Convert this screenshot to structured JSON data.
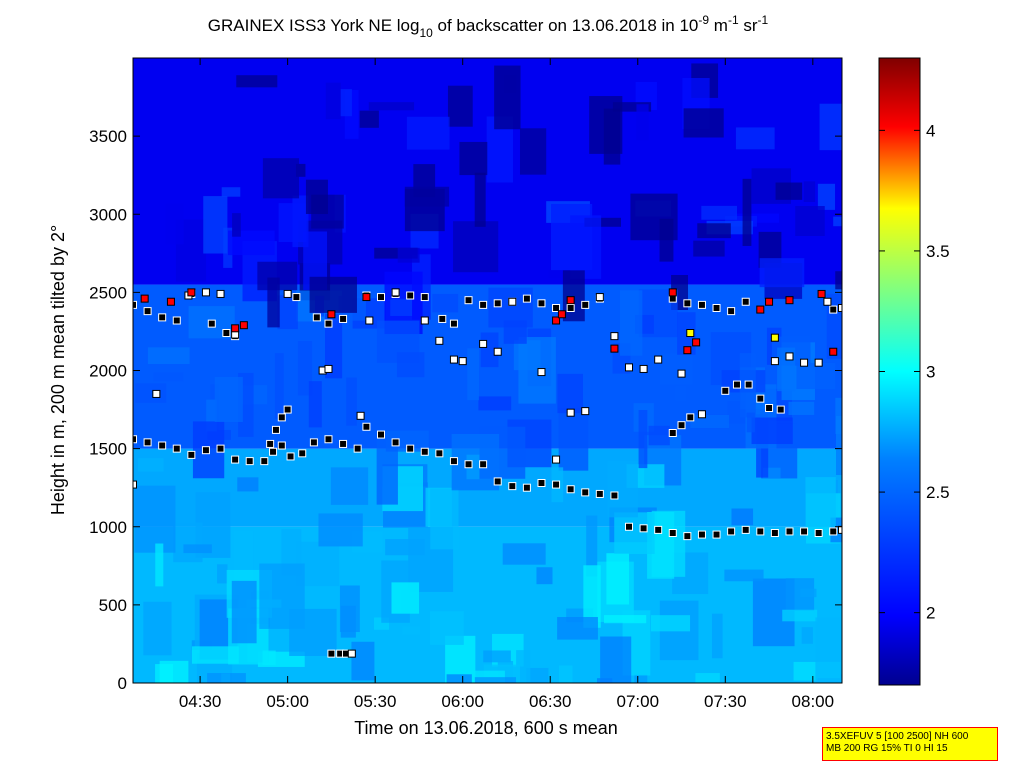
{
  "chart_data": {
    "type": "heatmap",
    "title": {
      "prefix": "GRAINEX ISS3 York NE log",
      "sub": "10",
      "middle": " of backscatter on 13.06.2018 in 10",
      "sup1": "-9",
      "unit1": " m",
      "sup2": "-1",
      "unit2": " sr",
      "sup3": "-1"
    },
    "xlabel": "Time on 13.06.2018, 600 s mean",
    "ylabel": "Height in m, 200 m mean tilted by 2°",
    "x_range": [
      "04:07",
      "08:10"
    ],
    "x_ticks": [
      "04:30",
      "05:00",
      "05:30",
      "06:00",
      "06:30",
      "07:00",
      "07:30",
      "08:00"
    ],
    "ylim": [
      0,
      4000
    ],
    "y_ticks": [
      0,
      500,
      1000,
      1500,
      2000,
      2500,
      3000,
      3500
    ],
    "colorbar": {
      "range": [
        1.7,
        4.3
      ],
      "ticks": [
        2,
        2.5,
        3,
        3.5,
        4
      ],
      "colormap": [
        "#00008f",
        "#0000ff",
        "#00ffff",
        "#ffff00",
        "#ff0000",
        "#800000"
      ]
    },
    "field": {
      "description_levels": "background colour regions by height band",
      "bands": [
        {
          "from": 0,
          "to": 1000,
          "value": 2.8
        },
        {
          "from": 1000,
          "to": 1500,
          "value": 2.75
        },
        {
          "from": 1500,
          "to": 2550,
          "value": 2.45
        },
        {
          "from": 2550,
          "to": 4000,
          "value": 1.95
        }
      ]
    },
    "series": [
      {
        "marker": "black-square",
        "points": [
          [
            "04:07",
            1560
          ],
          [
            "04:12",
            1540
          ],
          [
            "04:17",
            1520
          ],
          [
            "04:22",
            1500
          ],
          [
            "04:27",
            1460
          ],
          [
            "04:32",
            1490
          ],
          [
            "04:37",
            1500
          ],
          [
            "04:42",
            1430
          ],
          [
            "04:47",
            1420
          ],
          [
            "04:52",
            1420
          ],
          [
            "04:55",
            1480
          ],
          [
            "04:58",
            1520
          ],
          [
            "05:01",
            1450
          ],
          [
            "05:05",
            1470
          ],
          [
            "05:09",
            1540
          ],
          [
            "05:14",
            1560
          ],
          [
            "05:19",
            1530
          ],
          [
            "05:24",
            1500
          ],
          [
            "05:27",
            1640
          ],
          [
            "05:32",
            1590
          ],
          [
            "05:37",
            1540
          ],
          [
            "05:42",
            1500
          ],
          [
            "05:47",
            1480
          ],
          [
            "05:52",
            1470
          ],
          [
            "05:57",
            1420
          ],
          [
            "06:02",
            1400
          ],
          [
            "06:07",
            1400
          ],
          [
            "06:12",
            1290
          ],
          [
            "06:17",
            1260
          ],
          [
            "06:22",
            1250
          ],
          [
            "06:27",
            1280
          ],
          [
            "06:32",
            1270
          ],
          [
            "06:37",
            1240
          ],
          [
            "06:42",
            1220
          ],
          [
            "06:47",
            1210
          ],
          [
            "06:52",
            1200
          ],
          [
            "06:57",
            1000
          ],
          [
            "07:02",
            990
          ],
          [
            "07:07",
            980
          ],
          [
            "07:12",
            960
          ],
          [
            "07:17",
            940
          ],
          [
            "07:22",
            950
          ],
          [
            "07:27",
            950
          ],
          [
            "07:32",
            970
          ],
          [
            "07:37",
            980
          ],
          [
            "07:42",
            970
          ],
          [
            "07:47",
            960
          ],
          [
            "07:52",
            970
          ],
          [
            "07:57",
            970
          ],
          [
            "08:02",
            960
          ],
          [
            "08:07",
            970
          ],
          [
            "04:54",
            1530
          ],
          [
            "04:56",
            1620
          ],
          [
            "04:58",
            1700
          ],
          [
            "05:00",
            1750
          ],
          [
            "07:12",
            1600
          ],
          [
            "07:15",
            1650
          ],
          [
            "07:18",
            1700
          ],
          [
            "07:30",
            1870
          ],
          [
            "07:34",
            1910
          ],
          [
            "07:38",
            1910
          ],
          [
            "07:42",
            1820
          ],
          [
            "07:45",
            1760
          ],
          [
            "07:49",
            1750
          ],
          [
            "04:07",
            2420
          ],
          [
            "04:12",
            2380
          ],
          [
            "04:17",
            2340
          ],
          [
            "04:22",
            2320
          ],
          [
            "04:27",
            2490
          ],
          [
            "04:34",
            2300
          ],
          [
            "04:39",
            2240
          ],
          [
            "04:42",
            2220
          ],
          [
            "05:03",
            2470
          ],
          [
            "05:10",
            2340
          ],
          [
            "05:14",
            2300
          ],
          [
            "05:19",
            2330
          ],
          [
            "05:27",
            2480
          ],
          [
            "05:32",
            2470
          ],
          [
            "05:37",
            2490
          ],
          [
            "05:42",
            2480
          ],
          [
            "05:47",
            2470
          ],
          [
            "05:53",
            2330
          ],
          [
            "05:57",
            2300
          ],
          [
            "06:02",
            2450
          ],
          [
            "06:07",
            2420
          ],
          [
            "06:12",
            2430
          ],
          [
            "06:17",
            2440
          ],
          [
            "06:22",
            2460
          ],
          [
            "06:27",
            2430
          ],
          [
            "06:32",
            2400
          ],
          [
            "06:37",
            2400
          ],
          [
            "06:42",
            2420
          ],
          [
            "06:47",
            2460
          ],
          [
            "07:12",
            2460
          ],
          [
            "07:17",
            2430
          ],
          [
            "07:22",
            2420
          ],
          [
            "07:27",
            2400
          ],
          [
            "07:32",
            2380
          ],
          [
            "07:37",
            2440
          ],
          [
            "08:07",
            2390
          ],
          [
            "05:15",
            188
          ],
          [
            "05:18",
            188
          ],
          [
            "05:20",
            188
          ]
        ]
      },
      {
        "marker": "white-square",
        "points": [
          [
            "04:07",
            1270
          ],
          [
            "04:15",
            1850
          ],
          [
            "04:26",
            2480
          ],
          [
            "04:32",
            2500
          ],
          [
            "04:37",
            2490
          ],
          [
            "04:42",
            2230
          ],
          [
            "05:00",
            2490
          ],
          [
            "05:12",
            2000
          ],
          [
            "05:14",
            2010
          ],
          [
            "05:25",
            1710
          ],
          [
            "05:28",
            2320
          ],
          [
            "05:37",
            2500
          ],
          [
            "05:47",
            2320
          ],
          [
            "05:52",
            2190
          ],
          [
            "05:57",
            2070
          ],
          [
            "06:00",
            2060
          ],
          [
            "06:07",
            2170
          ],
          [
            "06:12",
            2120
          ],
          [
            "06:17",
            2440
          ],
          [
            "06:27",
            1990
          ],
          [
            "06:32",
            1430
          ],
          [
            "06:37",
            1730
          ],
          [
            "06:42",
            1740
          ],
          [
            "06:47",
            2470
          ],
          [
            "06:52",
            2220
          ],
          [
            "06:57",
            2020
          ],
          [
            "07:02",
            2010
          ],
          [
            "07:07",
            2070
          ],
          [
            "07:15",
            1980
          ],
          [
            "07:22",
            1720
          ],
          [
            "07:47",
            2060
          ],
          [
            "07:52",
            2090
          ],
          [
            "07:57",
            2050
          ],
          [
            "08:02",
            2050
          ],
          [
            "08:05",
            2440
          ],
          [
            "08:10",
            2400
          ],
          [
            "08:10",
            980
          ],
          [
            "05:22",
            188
          ]
        ]
      },
      {
        "marker": "red-square",
        "points": [
          [
            "04:11",
            2460
          ],
          [
            "04:20",
            2440
          ],
          [
            "04:27",
            2500
          ],
          [
            "04:42",
            2270
          ],
          [
            "04:45",
            2290
          ],
          [
            "05:15",
            2360
          ],
          [
            "05:27",
            2470
          ],
          [
            "06:32",
            2320
          ],
          [
            "06:34",
            2360
          ],
          [
            "06:37",
            2450
          ],
          [
            "06:52",
            2140
          ],
          [
            "07:12",
            2500
          ],
          [
            "07:17",
            2130
          ],
          [
            "07:20",
            2180
          ],
          [
            "07:42",
            2390
          ],
          [
            "07:45",
            2440
          ],
          [
            "07:52",
            2450
          ],
          [
            "08:03",
            2490
          ],
          [
            "08:07",
            2120
          ]
        ]
      },
      {
        "marker": "yellow-square",
        "points": [
          [
            "07:18",
            2240
          ],
          [
            "07:47",
            2210
          ]
        ]
      }
    ]
  },
  "note": {
    "line1": "3.5XEFUV 5 [100 2500] NH 600",
    "line2": "MB 200 RG 15% TI 0 HI 15"
  }
}
